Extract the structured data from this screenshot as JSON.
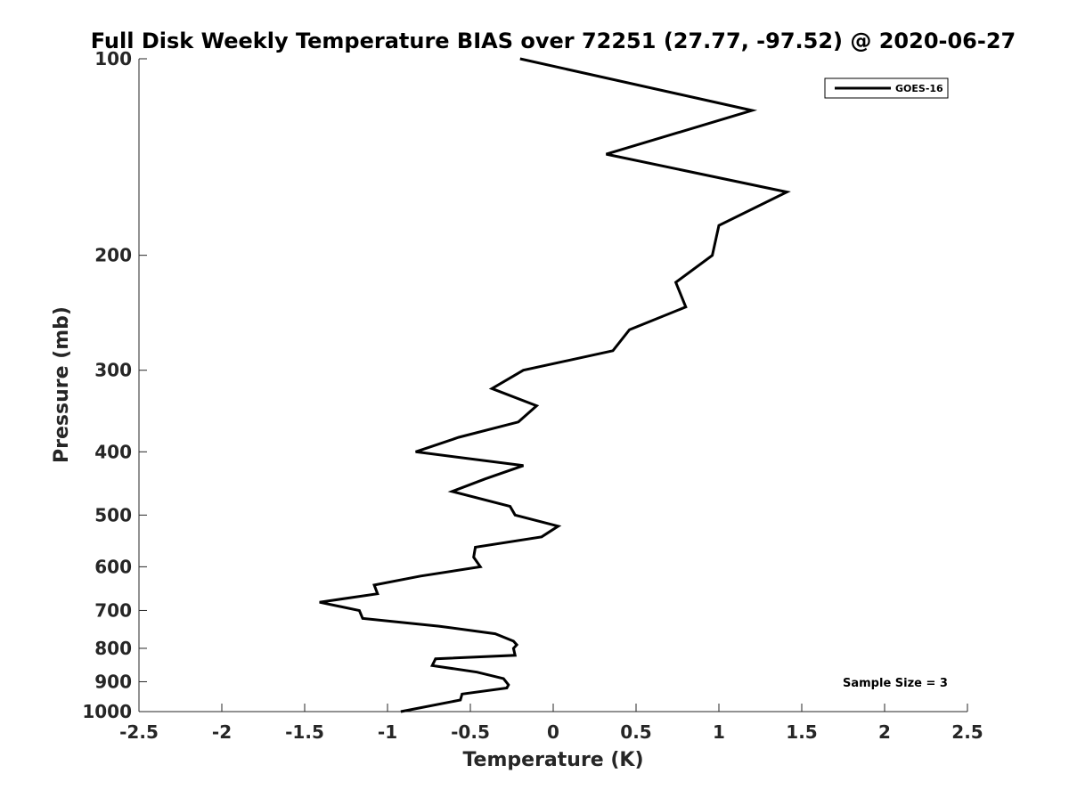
{
  "chart_data": {
    "type": "line",
    "title": "Full Disk Weekly Temperature BIAS over 72251 (27.77, -97.52) @ 2020-06-27",
    "xlabel": "Temperature (K)",
    "ylabel": "Pressure (mb)",
    "xlim": [
      -2.5,
      2.5
    ],
    "ylim": [
      100,
      1000
    ],
    "y_scale": "log",
    "y_reversed": true,
    "grid": false,
    "legend_position": "top-right",
    "x_ticks": [
      -2.5,
      -2,
      -1.5,
      -1,
      -0.5,
      0,
      0.5,
      1,
      1.5,
      2,
      2.5
    ],
    "x_tick_labels": [
      "-2.5",
      "-2",
      "-1.5",
      "-1",
      "-0.5",
      "0",
      "0.5",
      "1",
      "1.5",
      "2",
      "2.5"
    ],
    "y_ticks": [
      100,
      200,
      300,
      400,
      500,
      600,
      700,
      800,
      900,
      1000
    ],
    "y_tick_labels": [
      "100",
      "200",
      "300",
      "400",
      "500",
      "600",
      "700",
      "800",
      "900",
      "1000"
    ],
    "series": [
      {
        "name": "GOES-16",
        "color": "#000000",
        "points": [
          [
            -0.2,
            100
          ],
          [
            1.2,
            120
          ],
          [
            0.32,
            140
          ],
          [
            1.41,
            160
          ],
          [
            1.0,
            180
          ],
          [
            0.96,
            200
          ],
          [
            0.74,
            220
          ],
          [
            0.8,
            240
          ],
          [
            0.46,
            260
          ],
          [
            0.36,
            280
          ],
          [
            -0.18,
            300
          ],
          [
            -0.37,
            320
          ],
          [
            -0.1,
            340
          ],
          [
            -0.21,
            360
          ],
          [
            -0.57,
            380
          ],
          [
            -0.83,
            400
          ],
          [
            -0.18,
            420
          ],
          [
            -0.41,
            440
          ],
          [
            -0.61,
            460
          ],
          [
            -0.26,
            485
          ],
          [
            -0.23,
            500
          ],
          [
            0.03,
            520
          ],
          [
            -0.07,
            540
          ],
          [
            -0.47,
            560
          ],
          [
            -0.48,
            580
          ],
          [
            -0.44,
            600
          ],
          [
            -0.8,
            620
          ],
          [
            -1.08,
            640
          ],
          [
            -1.06,
            660
          ],
          [
            -1.41,
            680
          ],
          [
            -1.17,
            700
          ],
          [
            -1.15,
            720
          ],
          [
            -0.69,
            740
          ],
          [
            -0.35,
            760
          ],
          [
            -0.24,
            780
          ],
          [
            -0.22,
            790
          ],
          [
            -0.24,
            800
          ],
          [
            -0.23,
            820
          ],
          [
            -0.71,
            830
          ],
          [
            -0.73,
            850
          ],
          [
            -0.46,
            870
          ],
          [
            -0.3,
            890
          ],
          [
            -0.27,
            910
          ],
          [
            -0.28,
            920
          ],
          [
            -0.55,
            940
          ],
          [
            -0.56,
            960
          ],
          [
            -0.92,
            1000
          ]
        ]
      }
    ],
    "annotation": "Sample Size = 3"
  }
}
